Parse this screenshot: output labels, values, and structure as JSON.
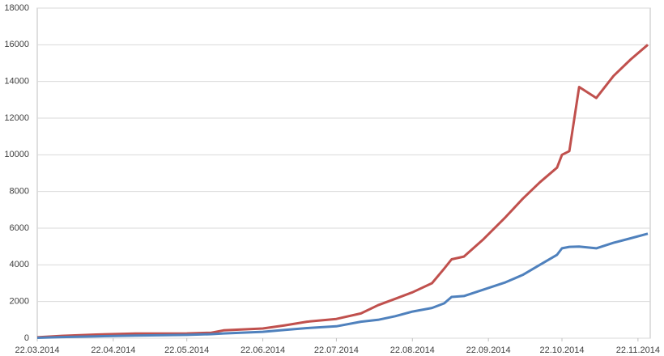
{
  "chart_data": {
    "type": "line",
    "x": [
      "22.03.2014",
      "01.04.2014",
      "15.04.2014",
      "01.05.2014",
      "22.05.2014",
      "01.06.2014",
      "06.06.2014",
      "22.06.2014",
      "01.07.2014",
      "10.07.2014",
      "22.07.2014",
      "01.08.2014",
      "08.08.2014",
      "15.08.2014",
      "22.08.2014",
      "30.08.2014",
      "04.09.2014",
      "07.09.2014",
      "12.09.2014",
      "20.09.2014",
      "29.09.2014",
      "06.10.2014",
      "13.10.2014",
      "20.10.2014",
      "22.10.2014",
      "25.10.2014",
      "29.10.2014",
      "05.11.2014",
      "12.11.2014",
      "19.11.2014",
      "26.11.2014"
    ],
    "series": [
      {
        "color": "#c0504d",
        "values": [
          50,
          130,
          200,
          250,
          260,
          300,
          430,
          530,
          700,
          900,
          1050,
          1350,
          1800,
          2150,
          2500,
          3000,
          3800,
          4300,
          4450,
          5400,
          6600,
          7600,
          8500,
          9300,
          10000,
          10200,
          13700,
          13100,
          14300,
          15200,
          16000
        ]
      },
      {
        "color": "#4f81bd",
        "values": [
          20,
          60,
          100,
          140,
          180,
          220,
          260,
          350,
          450,
          550,
          650,
          900,
          1000,
          1200,
          1450,
          1650,
          1900,
          2250,
          2300,
          2650,
          3050,
          3450,
          4000,
          4550,
          4900,
          4980,
          5000,
          4900,
          5200,
          5450,
          5700
        ]
      }
    ],
    "xlim": [
      "22.03.2014",
      "27.11.2014"
    ],
    "xticks": [
      "22.03.2014",
      "22.04.2014",
      "22.05.2014",
      "22.06.2014",
      "22.07.2014",
      "22.08.2014",
      "22.09.2014",
      "22.10.2014",
      "22.11.2014"
    ],
    "ylim": [
      0,
      18000
    ],
    "yticks": [
      0,
      2000,
      4000,
      6000,
      8000,
      10000,
      12000,
      14000,
      16000,
      18000
    ],
    "grid": true
  }
}
